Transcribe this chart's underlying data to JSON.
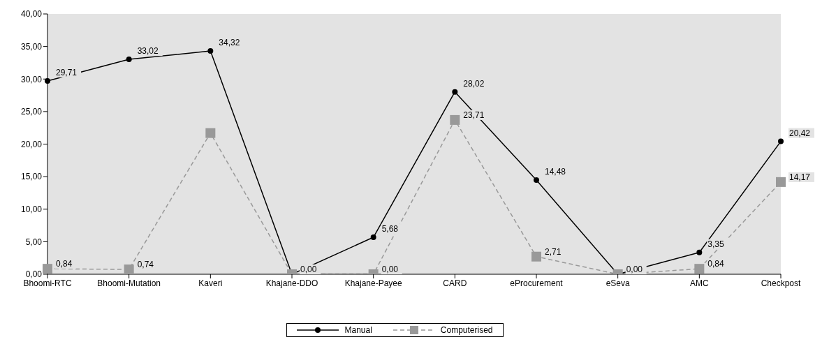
{
  "chart_data": {
    "type": "line",
    "categories": [
      "Bhoomi-RTC",
      "Bhoomi-Mutation",
      "Kaveri",
      "Khajane-DDO",
      "Khajane-Payee",
      "CARD",
      "eProcurement",
      "eSeva",
      "AMC",
      "Checkpost"
    ],
    "series": [
      {
        "name": "Manual",
        "color": "#000000",
        "marker": "circle",
        "line_style": "solid",
        "values": [
          29.71,
          33.02,
          34.32,
          0.0,
          5.68,
          28.02,
          14.48,
          0.0,
          3.35,
          20.42
        ],
        "value_labels": [
          "29,71",
          "33,02",
          "34,32",
          null,
          "5,68",
          "28,02",
          "14,48",
          null,
          "3,35",
          "20,42"
        ]
      },
      {
        "name": "Computerised",
        "color": "#999999",
        "marker": "square",
        "line_style": "dashed",
        "values": [
          0.84,
          0.74,
          21.7,
          0.0,
          0.0,
          23.71,
          2.71,
          0.0,
          0.84,
          14.17
        ],
        "value_labels": [
          "0,84",
          "0,74",
          null,
          "0,00",
          "0,00",
          "23,71",
          "2,71",
          "0,00",
          "0,84",
          "14,17"
        ]
      }
    ],
    "ylim": [
      0,
      40
    ],
    "yticks": [
      {
        "value": 0,
        "label": "0,00"
      },
      {
        "value": 5,
        "label": "5,00"
      },
      {
        "value": 10,
        "label": "10,00"
      },
      {
        "value": 15,
        "label": "15,00"
      },
      {
        "value": 20,
        "label": "20,00"
      },
      {
        "value": 25,
        "label": "25,00"
      },
      {
        "value": 30,
        "label": "30,00"
      },
      {
        "value": 35,
        "label": "35,00"
      },
      {
        "value": 40,
        "label": "40,00"
      }
    ],
    "grid": false,
    "legend": "bottom"
  }
}
